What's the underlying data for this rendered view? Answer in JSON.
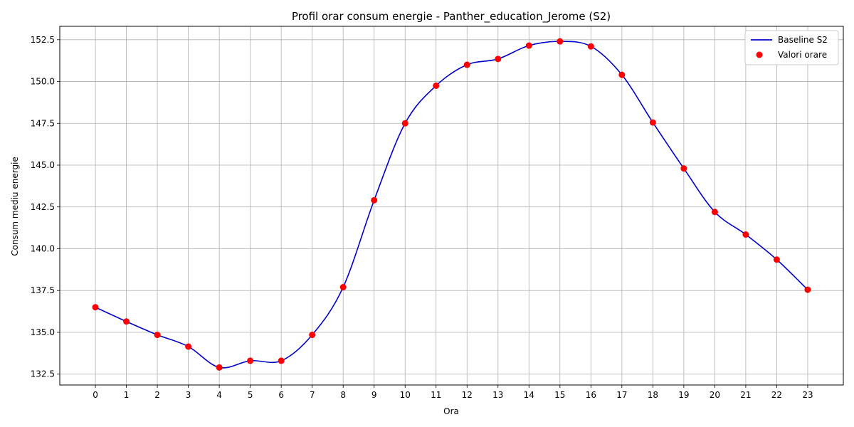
{
  "chart_data": {
    "type": "line",
    "title": "Profil orar consum energie - Panther_education_Jerome (S2)",
    "xlabel": "Ora",
    "ylabel": "Consum mediu energie",
    "x": [
      0,
      1,
      2,
      3,
      4,
      5,
      6,
      7,
      8,
      9,
      10,
      11,
      12,
      13,
      14,
      15,
      16,
      17,
      18,
      19,
      20,
      21,
      22,
      23
    ],
    "xlim": [
      -1.15,
      24.15
    ],
    "ylim": [
      131.85,
      153.3
    ],
    "yticks": [
      132.5,
      135.0,
      137.5,
      140.0,
      142.5,
      145.0,
      147.5,
      150.0,
      152.5
    ],
    "ytick_labels": [
      "132.5",
      "135.0",
      "137.5",
      "140.0",
      "142.5",
      "145.0",
      "147.5",
      "150.0",
      "152.5"
    ],
    "grid": true,
    "legend_position": "top-right",
    "series": [
      {
        "name": "Baseline S2",
        "kind": "line",
        "color": "#0000cc",
        "values": [
          136.5,
          135.65,
          134.85,
          134.15,
          132.9,
          133.3,
          133.3,
          134.85,
          137.7,
          142.9,
          147.5,
          149.75,
          151.0,
          151.35,
          152.15,
          152.4,
          152.1,
          150.4,
          147.55,
          144.8,
          142.2,
          140.85,
          139.35,
          137.55
        ]
      },
      {
        "name": "Valori orare",
        "kind": "scatter",
        "color": "#ff0000",
        "values": [
          136.5,
          135.65,
          134.85,
          134.15,
          132.9,
          133.3,
          133.3,
          134.85,
          137.7,
          142.9,
          147.5,
          149.75,
          151.0,
          151.35,
          152.15,
          152.4,
          152.1,
          150.4,
          147.55,
          144.8,
          142.2,
          140.85,
          139.35,
          137.55
        ]
      }
    ]
  }
}
